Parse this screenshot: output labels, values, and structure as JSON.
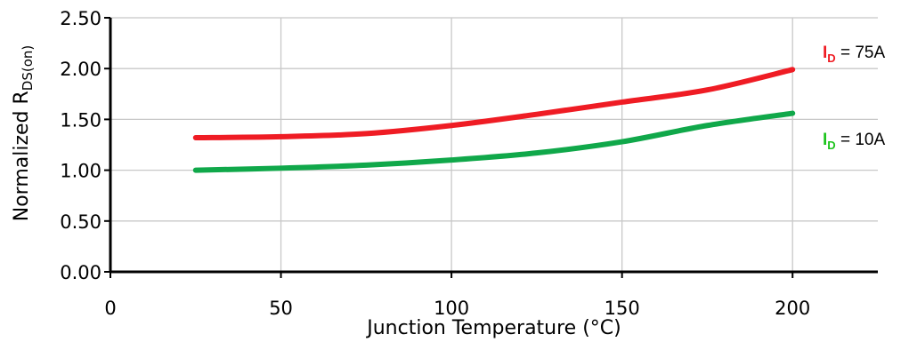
{
  "chart_data": {
    "type": "line",
    "xlabel": "Junction Temperature (°C)",
    "ylabel": "Normalized R",
    "ylabel_sub": "DS(on)",
    "xlim": [
      0,
      225
    ],
    "ylim": [
      0,
      2.5
    ],
    "x_ticks": [
      {
        "value": 0,
        "label": "0"
      },
      {
        "value": 50,
        "label": "50"
      },
      {
        "value": 100,
        "label": "100"
      },
      {
        "value": 150,
        "label": "150"
      },
      {
        "value": 200,
        "label": "200"
      }
    ],
    "y_ticks": [
      {
        "value": 0,
        "label": "0.00"
      },
      {
        "value": 0.5,
        "label": "0.50"
      },
      {
        "value": 1.0,
        "label": "1.00"
      },
      {
        "value": 1.5,
        "label": "1.50"
      },
      {
        "value": 2.0,
        "label": "2.00"
      },
      {
        "value": 2.5,
        "label": "2.50"
      }
    ],
    "grid": true,
    "series": [
      {
        "label_main": "I",
        "label_sub": "D",
        "label_value": " = 75A",
        "color": "#ef1c24",
        "x": [
          25,
          50,
          75,
          100,
          125,
          150,
          175,
          200
        ],
        "y": [
          1.32,
          1.33,
          1.36,
          1.44,
          1.55,
          1.67,
          1.79,
          1.99
        ]
      },
      {
        "label_main": "I",
        "label_sub": "D",
        "label_value": " = 10A",
        "color": "#10a84a",
        "x": [
          25,
          50,
          75,
          100,
          125,
          150,
          175,
          200
        ],
        "y": [
          1.0,
          1.02,
          1.05,
          1.1,
          1.17,
          1.28,
          1.44,
          1.56
        ]
      }
    ],
    "series_label_colors": [
      "#ef1c24",
      "#1ec41e"
    ]
  }
}
